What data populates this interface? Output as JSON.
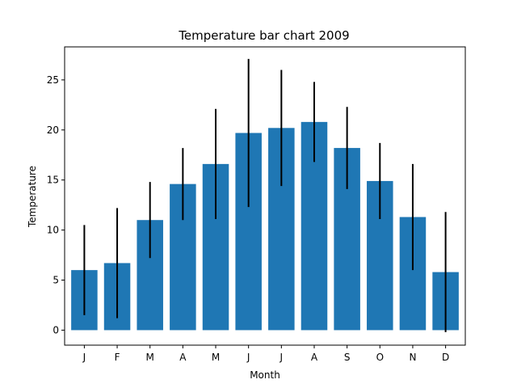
{
  "chart_data": {
    "type": "bar",
    "title": "Temperature bar chart 2009",
    "xlabel": "Month",
    "ylabel": "Temperature",
    "categories": [
      "J",
      "F",
      "M",
      "A",
      "M",
      "J",
      "J",
      "A",
      "S",
      "O",
      "N",
      "D"
    ],
    "values": [
      6.0,
      6.7,
      11.0,
      14.6,
      16.6,
      19.7,
      20.2,
      20.8,
      18.2,
      14.9,
      11.3,
      5.8
    ],
    "errors": [
      4.5,
      5.5,
      3.8,
      3.6,
      5.5,
      7.4,
      5.8,
      4.0,
      4.1,
      3.8,
      5.3,
      6.0
    ],
    "yticks": [
      0,
      5,
      10,
      15,
      20,
      25
    ],
    "ylim": [
      -1.5,
      28.3
    ],
    "grid": false,
    "legend": false,
    "colors": {
      "bar": "#1f77b4",
      "errorbar": "#000000",
      "axis": "#000000"
    }
  }
}
